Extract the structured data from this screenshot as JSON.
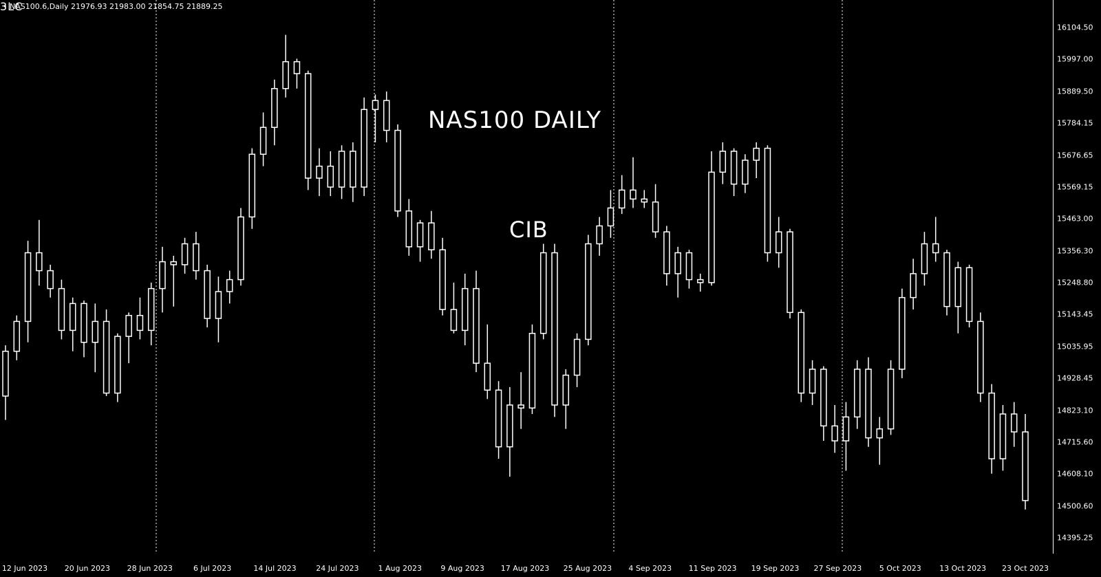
{
  "header": {
    "symbol_info": "• NAS100.6,Daily  21976.93 21983.00 21854.75 21889.25"
  },
  "annotations": {
    "title": "NAS100 DAILY",
    "cib": "CIB",
    "three_lc": "3LC"
  },
  "price_axis": [
    "16104.50",
    "15997.00",
    "15889.50",
    "15784.15",
    "15676.65",
    "15569.15",
    "15463.00",
    "15356.30",
    "15248.80",
    "15143.45",
    "15035.95",
    "14928.45",
    "14823.10",
    "14715.60",
    "14608.10",
    "14500.60",
    "14395.25"
  ],
  "time_axis": [
    "12 Jun 2023",
    "20 Jun 2023",
    "28 Jun 2023",
    "6 Jul 2023",
    "14 Jul 2023",
    "24 Jul 2023",
    "1 Aug 2023",
    "9 Aug 2023",
    "17 Aug 2023",
    "25 Aug 2023",
    "4 Sep 2023",
    "11 Sep 2023",
    "19 Sep 2023",
    "27 Sep 2023",
    "5 Oct 2023",
    "13 Oct 2023",
    "23 Oct 2023"
  ],
  "colors": {
    "background": "#000000",
    "foreground": "#ffffff"
  },
  "chart_data": {
    "type": "candlestick",
    "symbol": "NAS100.6",
    "timeframe": "Daily",
    "ylim": [
      14395.25,
      16104.5
    ],
    "grid": false,
    "candles": [
      [
        14870,
        15040,
        14790,
        15020
      ],
      [
        15020,
        15140,
        14990,
        15120
      ],
      [
        15120,
        15390,
        15050,
        15350
      ],
      [
        15350,
        15460,
        15240,
        15290
      ],
      [
        15290,
        15310,
        15200,
        15230
      ],
      [
        15230,
        15260,
        15060,
        15090
      ],
      [
        15090,
        15200,
        15020,
        15180
      ],
      [
        15180,
        15190,
        15000,
        15050
      ],
      [
        15050,
        15180,
        14950,
        15120
      ],
      [
        15120,
        15160,
        14870,
        14880
      ],
      [
        14880,
        15080,
        14850,
        15070
      ],
      [
        15070,
        15150,
        14980,
        15140
      ],
      [
        15140,
        15200,
        15060,
        15090
      ],
      [
        15090,
        15250,
        15040,
        15230
      ],
      [
        15230,
        15370,
        15150,
        15320
      ],
      [
        15320,
        15340,
        15170,
        15310
      ],
      [
        15310,
        15400,
        15280,
        15380
      ],
      [
        15380,
        15420,
        15260,
        15290
      ],
      [
        15290,
        15310,
        15100,
        15130
      ],
      [
        15130,
        15270,
        15050,
        15220
      ],
      [
        15220,
        15290,
        15180,
        15260
      ],
      [
        15260,
        15500,
        15240,
        15470
      ],
      [
        15470,
        15700,
        15430,
        15680
      ],
      [
        15680,
        15820,
        15640,
        15770
      ],
      [
        15770,
        15930,
        15710,
        15900
      ],
      [
        15900,
        16080,
        15870,
        15990
      ],
      [
        15990,
        16000,
        15900,
        15950
      ],
      [
        15950,
        15960,
        15560,
        15600
      ],
      [
        15600,
        15700,
        15540,
        15640
      ],
      [
        15640,
        15690,
        15540,
        15570
      ],
      [
        15570,
        15710,
        15530,
        15690
      ],
      [
        15690,
        15720,
        15520,
        15570
      ],
      [
        15570,
        15870,
        15540,
        15830
      ],
      [
        15830,
        15880,
        15720,
        15860
      ],
      [
        15860,
        15890,
        15720,
        15760
      ],
      [
        15760,
        15780,
        15470,
        15490
      ],
      [
        15490,
        15530,
        15340,
        15370
      ],
      [
        15370,
        15460,
        15320,
        15450
      ],
      [
        15450,
        15490,
        15330,
        15360
      ],
      [
        15360,
        15400,
        15140,
        15160
      ],
      [
        15160,
        15250,
        15080,
        15090
      ],
      [
        15090,
        15280,
        15040,
        15230
      ],
      [
        15230,
        15290,
        14950,
        14980
      ],
      [
        14980,
        15110,
        14860,
        14890
      ],
      [
        14890,
        14920,
        14660,
        14700
      ],
      [
        14700,
        14900,
        14600,
        14840
      ],
      [
        14840,
        14950,
        14760,
        14830
      ],
      [
        14830,
        15110,
        14810,
        15080
      ],
      [
        15080,
        15380,
        15060,
        15350
      ],
      [
        15350,
        15380,
        14800,
        14840
      ],
      [
        14840,
        14960,
        14760,
        14940
      ],
      [
        14940,
        15080,
        14900,
        15060
      ],
      [
        15060,
        15410,
        15040,
        15380
      ],
      [
        15380,
        15470,
        15340,
        15440
      ],
      [
        15440,
        15560,
        15400,
        15500
      ],
      [
        15500,
        15610,
        15480,
        15560
      ],
      [
        15560,
        15670,
        15500,
        15530
      ],
      [
        15530,
        15560,
        15500,
        15520
      ],
      [
        15520,
        15580,
        15400,
        15420
      ],
      [
        15420,
        15440,
        15240,
        15280
      ],
      [
        15280,
        15370,
        15200,
        15350
      ],
      [
        15350,
        15360,
        15230,
        15260
      ],
      [
        15260,
        15280,
        15220,
        15250
      ],
      [
        15250,
        15690,
        15240,
        15620
      ],
      [
        15620,
        15720,
        15580,
        15690
      ],
      [
        15690,
        15700,
        15540,
        15580
      ],
      [
        15580,
        15680,
        15550,
        15660
      ],
      [
        15660,
        15720,
        15600,
        15700
      ],
      [
        15700,
        15710,
        15320,
        15350
      ],
      [
        15350,
        15470,
        15300,
        15420
      ],
      [
        15420,
        15430,
        15130,
        15150
      ],
      [
        15150,
        15160,
        14850,
        14880
      ],
      [
        14880,
        14990,
        14840,
        14960
      ],
      [
        14960,
        14970,
        14720,
        14770
      ],
      [
        14770,
        14840,
        14680,
        14720
      ],
      [
        14720,
        14850,
        14620,
        14800
      ],
      [
        14800,
        14990,
        14760,
        14960
      ],
      [
        14960,
        15000,
        14700,
        14730
      ],
      [
        14730,
        14800,
        14640,
        14760
      ],
      [
        14760,
        14990,
        14740,
        14960
      ],
      [
        14960,
        15230,
        14930,
        15200
      ],
      [
        15200,
        15330,
        15160,
        15280
      ],
      [
        15280,
        15420,
        15240,
        15380
      ],
      [
        15380,
        15470,
        15320,
        15350
      ],
      [
        15350,
        15360,
        15140,
        15170
      ],
      [
        15170,
        15320,
        15080,
        15300
      ],
      [
        15300,
        15310,
        15100,
        15120
      ],
      [
        15120,
        15150,
        14850,
        14880
      ],
      [
        14880,
        14910,
        14610,
        14660
      ],
      [
        14660,
        14840,
        14620,
        14810
      ],
      [
        14810,
        14850,
        14700,
        14750
      ],
      [
        14750,
        14810,
        14490,
        14520
      ]
    ]
  }
}
